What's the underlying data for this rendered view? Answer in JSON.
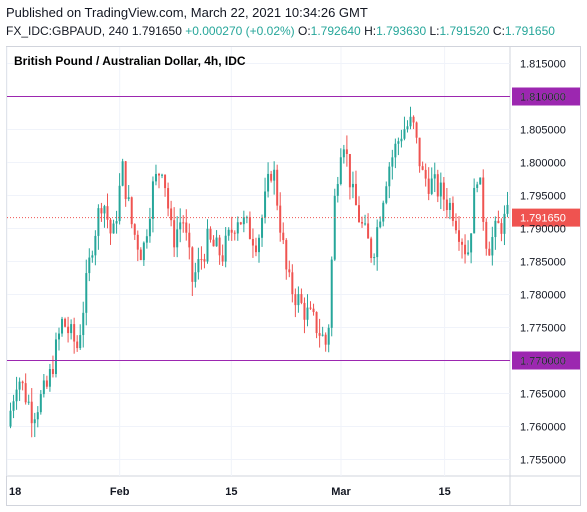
{
  "header": {
    "published": "Published on TradingView.com, March 22, 2021 10:34:26 GMT",
    "symbol": "FX_IDC:GBPAUD, 240",
    "last": "1.791650",
    "change": "+0.000270 (+0.02%)",
    "o_label": "O:",
    "o_value": "1.792640",
    "h_label": "H:",
    "h_value": "1.793630",
    "l_label": "L:",
    "l_value": "1.791520",
    "c_label": "C:",
    "c_value": "1.791650"
  },
  "colors": {
    "up": "#26a69a",
    "down": "#ef5350",
    "level": "#9c27b0",
    "price": "#ef5350"
  },
  "chart_data": {
    "type": "candlestick",
    "title": "British Pound / Australian Dollar, 4h, IDC",
    "y_ticks": [
      "1.815000",
      "1.810000",
      "1.805000",
      "1.800000",
      "1.795000",
      "1.790000",
      "1.785000",
      "1.780000",
      "1.775000",
      "1.770000",
      "1.765000",
      "1.760000",
      "1.755000"
    ],
    "y_range": [
      1.7525,
      1.8175
    ],
    "x_ticks": [
      {
        "label": "18",
        "pos": 0
      },
      {
        "label": "Feb",
        "pos": 0.224
      },
      {
        "label": "15",
        "pos": 0.446
      },
      {
        "label": "Mar",
        "pos": 0.664
      },
      {
        "label": "15",
        "pos": 0.87
      }
    ],
    "horizontal_levels": [
      {
        "value": 1.81,
        "label": "1.810000"
      },
      {
        "value": 1.77,
        "label": "1.770000"
      }
    ],
    "last_price": {
      "value": 1.79165,
      "label": "1.791650"
    },
    "path": [
      [
        0,
        1.76
      ],
      [
        0.02,
        1.768
      ],
      [
        0.05,
        1.762
      ],
      [
        0.08,
        1.766
      ],
      [
        0.11,
        1.776
      ],
      [
        0.14,
        1.772
      ],
      [
        0.17,
        1.788
      ],
      [
        0.19,
        1.795
      ],
      [
        0.21,
        1.788
      ],
      [
        0.23,
        1.799
      ],
      [
        0.25,
        1.79
      ],
      [
        0.27,
        1.786
      ],
      [
        0.29,
        1.796
      ],
      [
        0.31,
        1.8
      ],
      [
        0.33,
        1.788
      ],
      [
        0.35,
        1.792
      ],
      [
        0.37,
        1.782
      ],
      [
        0.4,
        1.788
      ],
      [
        0.43,
        1.786
      ],
      [
        0.46,
        1.792
      ],
      [
        0.5,
        1.788
      ],
      [
        0.53,
        1.8
      ],
      [
        0.56,
        1.782
      ],
      [
        0.59,
        1.778
      ],
      [
        0.62,
        1.775
      ],
      [
        0.64,
        1.772
      ],
      [
        0.655,
        1.795
      ],
      [
        0.67,
        1.805
      ],
      [
        0.69,
        1.795
      ],
      [
        0.71,
        1.79
      ],
      [
        0.73,
        1.786
      ],
      [
        0.76,
        1.799
      ],
      [
        0.79,
        1.805
      ],
      [
        0.81,
        1.806
      ],
      [
        0.83,
        1.798
      ],
      [
        0.86,
        1.796
      ],
      [
        0.89,
        1.793
      ],
      [
        0.92,
        1.786
      ],
      [
        0.94,
        1.799
      ],
      [
        0.96,
        1.787
      ],
      [
        0.98,
        1.79
      ],
      [
        1.0,
        1.7917
      ]
    ]
  }
}
